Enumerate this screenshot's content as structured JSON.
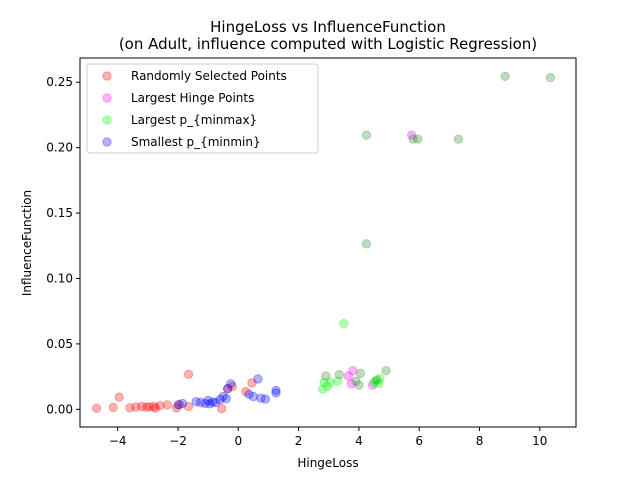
{
  "chart_data": {
    "type": "scatter",
    "title": "HingeLoss vs InfluenceFunction",
    "subtitle": "(on Adult, influence computed with Logistic Regression)",
    "xlabel": "HingeLoss",
    "ylabel": "InfluenceFunction",
    "xlim": [
      -5.25,
      11.2
    ],
    "ylim": [
      -0.0135,
      0.2685
    ],
    "xticks": [
      -4,
      -2,
      0,
      2,
      4,
      6,
      8,
      10
    ],
    "xtick_labels": [
      "−4",
      "−2",
      "0",
      "2",
      "4",
      "6",
      "8",
      "10"
    ],
    "yticks": [
      0.0,
      0.05,
      0.1,
      0.15,
      0.2,
      0.25
    ],
    "ytick_labels": [
      "0.00",
      "0.05",
      "0.10",
      "0.15",
      "0.20",
      "0.25"
    ],
    "grid": false,
    "legend_position": "top-left",
    "series": [
      {
        "name": "Randomly Selected Points",
        "color": "#ff0000",
        "points": [
          [
            -4.7,
            0.0008
          ],
          [
            -4.15,
            0.0015
          ],
          [
            -3.95,
            0.0093
          ],
          [
            -3.6,
            0.0012
          ],
          [
            -3.4,
            0.0018
          ],
          [
            -3.2,
            0.0022
          ],
          [
            -3.05,
            0.0016
          ],
          [
            -2.95,
            0.0019
          ],
          [
            -2.8,
            0.0021
          ],
          [
            -2.75,
            0.0009
          ],
          [
            -2.6,
            0.0028
          ],
          [
            -2.35,
            0.0033
          ],
          [
            -2.05,
            0.0011
          ],
          [
            -1.95,
            0.0037
          ],
          [
            -1.65,
            0.0268
          ],
          [
            -1.65,
            0.0021
          ],
          [
            -0.55,
            0.0005
          ],
          [
            -0.35,
            0.0158
          ],
          [
            -0.2,
            0.0175
          ],
          [
            0.25,
            0.0135
          ],
          [
            0.45,
            0.0202
          ]
        ]
      },
      {
        "name": "Largest Hinge Points",
        "color": "#ff00ff",
        "points": [
          [
            3.65,
            0.0255
          ],
          [
            3.8,
            0.0295
          ],
          [
            3.75,
            0.0195
          ],
          [
            4.45,
            0.0185
          ],
          [
            5.75,
            0.2095
          ]
        ]
      },
      {
        "name": "Largest p_{minmax}",
        "color": "#00ff00",
        "points": [
          [
            2.8,
            0.0155
          ],
          [
            2.85,
            0.0205
          ],
          [
            2.95,
            0.0175
          ],
          [
            3.05,
            0.0205
          ],
          [
            3.3,
            0.0215
          ],
          [
            3.5,
            0.0655
          ],
          [
            4.5,
            0.0205
          ],
          [
            4.55,
            0.0215
          ],
          [
            4.65,
            0.0195
          ],
          [
            4.7,
            0.0235
          ]
        ]
      },
      {
        "name": "Smallest p_{minmin}",
        "color": "#0000ff",
        "points": [
          [
            -2.0,
            0.0035
          ],
          [
            -1.85,
            0.0045
          ],
          [
            -1.4,
            0.0058
          ],
          [
            -1.25,
            0.0052
          ],
          [
            -1.1,
            0.0045
          ],
          [
            -1.0,
            0.0068
          ],
          [
            -0.95,
            0.0042
          ],
          [
            -0.85,
            0.0055
          ],
          [
            -0.75,
            0.0052
          ],
          [
            -0.6,
            0.0075
          ],
          [
            -0.5,
            0.0098
          ],
          [
            -0.4,
            0.0082
          ],
          [
            -0.35,
            0.0158
          ],
          [
            -0.25,
            0.0195
          ],
          [
            0.35,
            0.0115
          ],
          [
            0.5,
            0.0098
          ],
          [
            0.65,
            0.0232
          ],
          [
            0.75,
            0.0085
          ],
          [
            0.9,
            0.0078
          ],
          [
            1.25,
            0.0125
          ],
          [
            1.25,
            0.0145
          ]
        ]
      },
      {
        "name": "",
        "color": "#2e8b2e",
        "points": [
          [
            2.9,
            0.0255
          ],
          [
            3.35,
            0.0265
          ],
          [
            3.9,
            0.0215
          ],
          [
            4.0,
            0.0185
          ],
          [
            4.05,
            0.0275
          ],
          [
            4.25,
            0.1265
          ],
          [
            4.25,
            0.2095
          ],
          [
            4.6,
            0.0225
          ],
          [
            4.9,
            0.0295
          ],
          [
            5.8,
            0.2065
          ],
          [
            5.95,
            0.2065
          ],
          [
            7.3,
            0.2065
          ],
          [
            8.85,
            0.2545
          ],
          [
            10.35,
            0.2535
          ]
        ]
      }
    ]
  }
}
